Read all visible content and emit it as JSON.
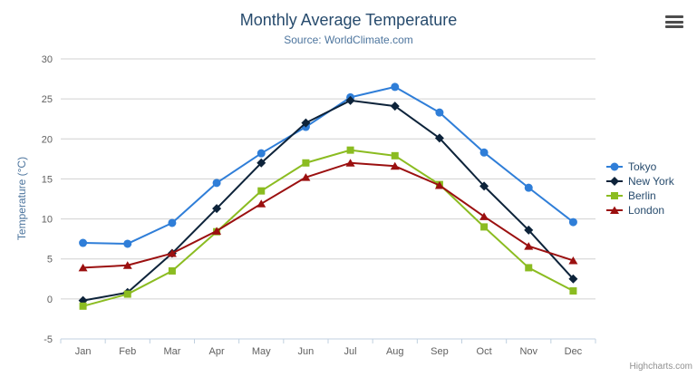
{
  "chart": {
    "title": "Monthly Average Temperature",
    "subtitle": "Source: WorldClimate.com"
  },
  "chart_data": {
    "type": "line",
    "title": "Monthly Average Temperature",
    "subtitle": "Source: WorldClimate.com",
    "categories": [
      "Jan",
      "Feb",
      "Mar",
      "Apr",
      "May",
      "Jun",
      "Jul",
      "Aug",
      "Sep",
      "Oct",
      "Nov",
      "Dec"
    ],
    "series": [
      {
        "name": "Tokyo",
        "color": "#2f7ed8",
        "marker": "circle",
        "values": [
          7.0,
          6.9,
          9.5,
          14.5,
          18.2,
          21.5,
          25.2,
          26.5,
          23.3,
          18.3,
          13.9,
          9.6
        ]
      },
      {
        "name": "New York",
        "color": "#0d233a",
        "marker": "diamond",
        "values": [
          -0.2,
          0.8,
          5.7,
          11.3,
          17.0,
          22.0,
          24.8,
          24.1,
          20.1,
          14.1,
          8.6,
          2.5
        ]
      },
      {
        "name": "Berlin",
        "color": "#8bbc21",
        "marker": "square",
        "values": [
          -0.9,
          0.6,
          3.5,
          8.4,
          13.5,
          17.0,
          18.6,
          17.9,
          14.3,
          9.0,
          3.9,
          1.0
        ]
      },
      {
        "name": "London",
        "color": "#9b1010",
        "marker": "triangle",
        "values": [
          3.9,
          4.2,
          5.7,
          8.5,
          11.9,
          15.2,
          17.0,
          16.6,
          14.2,
          10.3,
          6.6,
          4.8
        ]
      }
    ],
    "xlabel": "",
    "ylabel": "Temperature (°C)",
    "ylim": [
      -5,
      30
    ],
    "ytick_step": 5,
    "grid": true,
    "legend_position": "right",
    "colors": {
      "grid_line": "#d0d0d0",
      "axis_line": "#c0d0e0",
      "tick_label": "#606060",
      "title_text": "#274b6d",
      "subtitle_text": "#4d759e"
    }
  },
  "credits": {
    "label": "Highcharts.com"
  },
  "menu": {
    "icon": "hamburger-menu-icon"
  }
}
